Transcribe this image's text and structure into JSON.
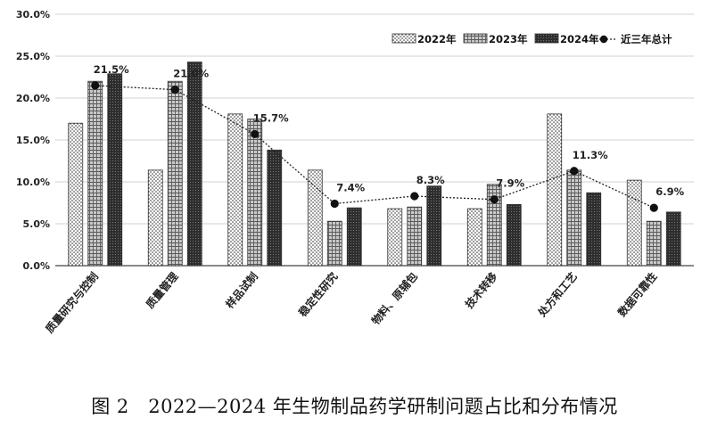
{
  "chart_data": {
    "type": "bar",
    "categories": [
      "质量研究与控制",
      "质量管理",
      "样品试制",
      "稳定性研究",
      "物料、原辅包",
      "技术转移",
      "处方和工艺",
      "数据可靠性"
    ],
    "series": [
      {
        "name": "2022年",
        "type": "bar",
        "pattern": "dots",
        "values": [
          17.0,
          11.4,
          18.1,
          11.4,
          6.8,
          6.8,
          18.1,
          10.2
        ]
      },
      {
        "name": "2023年",
        "type": "bar",
        "pattern": "crosshatch",
        "values": [
          22.0,
          22.0,
          17.5,
          5.3,
          7.0,
          9.7,
          11.4,
          5.3
        ]
      },
      {
        "name": "2024年",
        "type": "bar",
        "pattern": "dense",
        "values": [
          22.9,
          24.3,
          13.8,
          6.9,
          9.5,
          7.3,
          8.7,
          6.4
        ]
      },
      {
        "name": "近三年总计",
        "type": "line",
        "values": [
          21.5,
          21.0,
          15.7,
          7.4,
          8.3,
          7.9,
          11.3,
          6.9
        ]
      }
    ],
    "data_labels": [
      "21.5%",
      "21.0%",
      "15.7%",
      "7.4%",
      "8.3%",
      "7.9%",
      "11.3%",
      "6.9%"
    ],
    "y_ticks": [
      "0.0%",
      "5.0%",
      "10.0%",
      "15.0%",
      "20.0%",
      "25.0%",
      "30.0%"
    ],
    "ylim": [
      0,
      30
    ],
    "title": "",
    "xlabel": "",
    "ylabel": "",
    "legend": "top-right"
  },
  "caption": "图 2　2022—2024 年生物制品药学研制问题占比和分布情况"
}
